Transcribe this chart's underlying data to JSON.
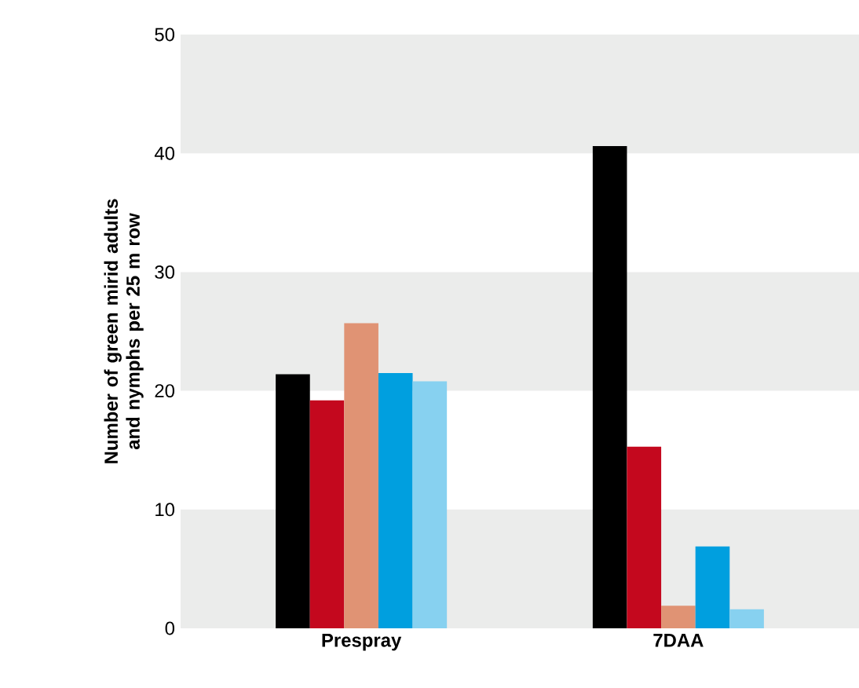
{
  "chart_data": {
    "type": "bar",
    "ylabel": "Number of green mirid adults and nymphs per 25 m row",
    "categories": [
      "Prespray",
      "7DAA"
    ],
    "series": [
      {
        "color": "#000000",
        "values": [
          21.4,
          40.6
        ]
      },
      {
        "color": "#c4081e",
        "values": [
          19.2,
          15.3
        ]
      },
      {
        "color": "#e09374",
        "values": [
          25.7,
          1.9
        ]
      },
      {
        "color": "#009fdf",
        "values": [
          21.5,
          6.9
        ]
      },
      {
        "color": "#87d1f0",
        "values": [
          20.8,
          1.6
        ]
      }
    ],
    "ylim": [
      0,
      50
    ],
    "yticks": [
      0,
      10,
      20,
      30,
      40,
      50
    ],
    "bands": [
      {
        "axis": "y",
        "from": 0,
        "to": 10,
        "color": "#ebeceb"
      },
      {
        "axis": "y",
        "from": 20,
        "to": 30,
        "color": "#ebeceb"
      },
      {
        "axis": "y",
        "from": 40,
        "to": 50,
        "color": "#ebeceb"
      }
    ]
  }
}
